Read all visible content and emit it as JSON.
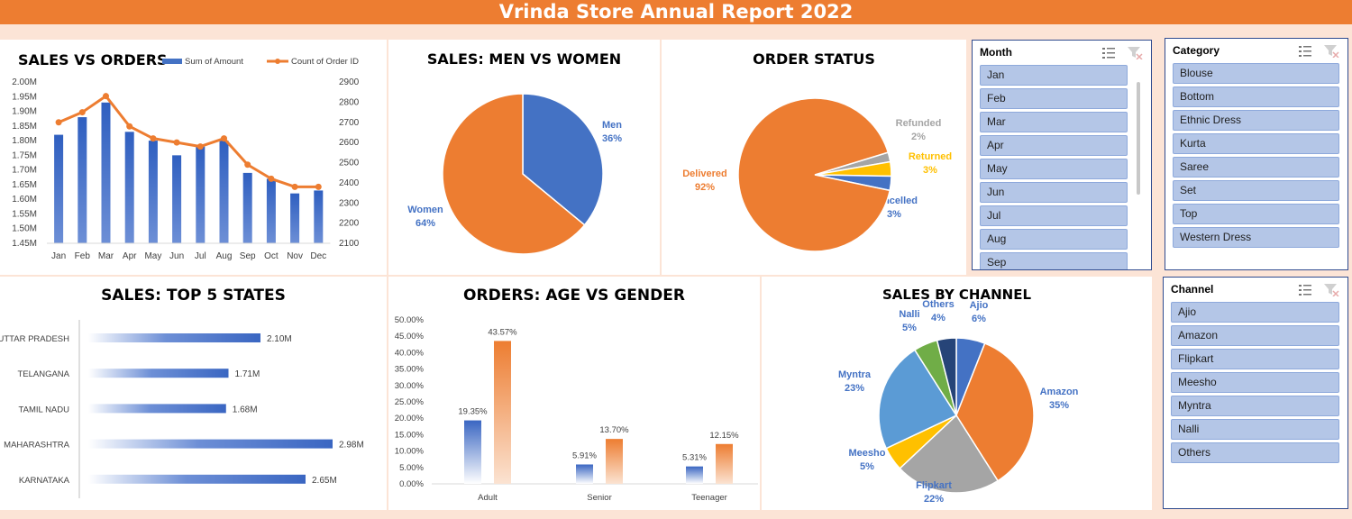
{
  "report_title": "Vrinda Store Annual Report 2022",
  "chart_data": [
    {
      "id": "sales_vs_orders",
      "type": "bar",
      "title": "SALES VS ORDERS",
      "categories": [
        "Jan",
        "Feb",
        "Mar",
        "Apr",
        "May",
        "Jun",
        "Jul",
        "Aug",
        "Sep",
        "Oct",
        "Nov",
        "Dec"
      ],
      "series": [
        {
          "name": "Sum of Amount",
          "type": "bar",
          "axis": "left",
          "color": "#4472c4",
          "values": [
            1.82,
            1.88,
            1.93,
            1.83,
            1.8,
            1.75,
            1.78,
            1.8,
            1.69,
            1.67,
            1.62,
            1.63
          ]
        },
        {
          "name": "Count of Order ID",
          "type": "line",
          "axis": "right",
          "color": "#ed7d31",
          "values": [
            2700,
            2750,
            2830,
            2680,
            2620,
            2600,
            2580,
            2620,
            2490,
            2420,
            2380,
            2380
          ]
        }
      ],
      "left_ticks": [
        "1.45M",
        "1.50M",
        "1.55M",
        "1.60M",
        "1.65M",
        "1.70M",
        "1.75M",
        "1.80M",
        "1.85M",
        "1.90M",
        "1.95M",
        "2.00M"
      ],
      "left_ylim": [
        1.45,
        2.0
      ],
      "right_ticks": [
        "2100",
        "2200",
        "2300",
        "2400",
        "2500",
        "2600",
        "2700",
        "2800",
        "2900"
      ],
      "right_ylim": [
        2100,
        2900
      ]
    },
    {
      "id": "men_vs_women",
      "type": "pie",
      "title": "SALES: MEN VS WOMEN",
      "slices": [
        {
          "name": "Men",
          "value": 36,
          "label": "36%",
          "color": "#4472c4",
          "text_color": "#4472c4"
        },
        {
          "name": "Women",
          "value": 64,
          "label": "64%",
          "color": "#ed7d31",
          "text_color": "#4472c4"
        }
      ]
    },
    {
      "id": "order_status",
      "type": "pie",
      "title": "ORDER STATUS",
      "slices": [
        {
          "name": "Refunded",
          "value": 2,
          "label": "2%",
          "color": "#a5a5a5",
          "text_color": "#a5a5a5"
        },
        {
          "name": "Returned",
          "value": 3,
          "label": "3%",
          "color": "#ffc000",
          "text_color": "#ffc000"
        },
        {
          "name": "Cancelled",
          "value": 3,
          "label": "3%",
          "color": "#4472c4",
          "text_color": "#4472c4"
        },
        {
          "name": "Delivered",
          "value": 92,
          "label": "92%",
          "color": "#ed7d31",
          "text_color": "#ed7d31"
        }
      ]
    },
    {
      "id": "top_states",
      "type": "bar",
      "orientation": "horizontal",
      "title": "SALES: TOP 5 STATES",
      "categories": [
        "UTTAR PRADESH",
        "TELANGANA",
        "TAMIL NADU",
        "MAHARASHTRA",
        "KARNATAKA"
      ],
      "values": [
        2.1,
        1.71,
        1.68,
        2.98,
        2.65
      ],
      "labels": [
        "2.10M",
        "1.71M",
        "1.68M",
        "2.98M",
        "2.65M"
      ],
      "color": "#4472c4"
    },
    {
      "id": "age_vs_gender",
      "type": "bar",
      "title": "ORDERS: AGE VS GENDER",
      "categories": [
        "Adult",
        "Senior",
        "Teenager"
      ],
      "series": [
        {
          "color": "#4472c4",
          "values": [
            19.35,
            5.91,
            5.31
          ],
          "labels": [
            "19.35%",
            "5.91%",
            "5.31%"
          ]
        },
        {
          "color": "#ed7d31",
          "values": [
            43.57,
            13.7,
            12.15
          ],
          "labels": [
            "43.57%",
            "13.70%",
            "12.15%"
          ]
        }
      ],
      "y_ticks": [
        "0.00%",
        "5.00%",
        "10.00%",
        "15.00%",
        "20.00%",
        "25.00%",
        "30.00%",
        "35.00%",
        "40.00%",
        "45.00%",
        "50.00%"
      ],
      "ylim": [
        0,
        50
      ]
    },
    {
      "id": "sales_by_channel",
      "type": "pie",
      "title": "SALES BY CHANNEL",
      "slices": [
        {
          "name": "Ajio",
          "value": 6,
          "label": "6%",
          "color": "#4472c4"
        },
        {
          "name": "Amazon",
          "value": 35,
          "label": "35%",
          "color": "#ed7d31"
        },
        {
          "name": "Flipkart",
          "value": 22,
          "label": "22%",
          "color": "#a5a5a5"
        },
        {
          "name": "Meesho",
          "value": 5,
          "label": "5%",
          "color": "#ffc000"
        },
        {
          "name": "Myntra",
          "value": 23,
          "label": "23%",
          "color": "#5b9bd5"
        },
        {
          "name": "Nalli",
          "value": 5,
          "label": "5%",
          "color": "#70ad47"
        },
        {
          "name": "Others",
          "value": 4,
          "label": "4%",
          "color": "#264478"
        }
      ]
    }
  ],
  "slicers": {
    "month": {
      "header": "Month",
      "items": [
        "Jan",
        "Feb",
        "Mar",
        "Apr",
        "May",
        "Jun",
        "Jul",
        "Aug",
        "Sep"
      ]
    },
    "category": {
      "header": "Category",
      "items": [
        "Blouse",
        "Bottom",
        "Ethnic Dress",
        "Kurta",
        "Saree",
        "Set",
        "Top",
        "Western Dress"
      ]
    },
    "channel": {
      "header": "Channel",
      "items": [
        "Ajio",
        "Amazon",
        "Flipkart",
        "Meesho",
        "Myntra",
        "Nalli",
        "Others"
      ]
    }
  },
  "icons": {
    "multi_select": "multi-select-icon",
    "clear_filter": "clear-filter-icon"
  }
}
